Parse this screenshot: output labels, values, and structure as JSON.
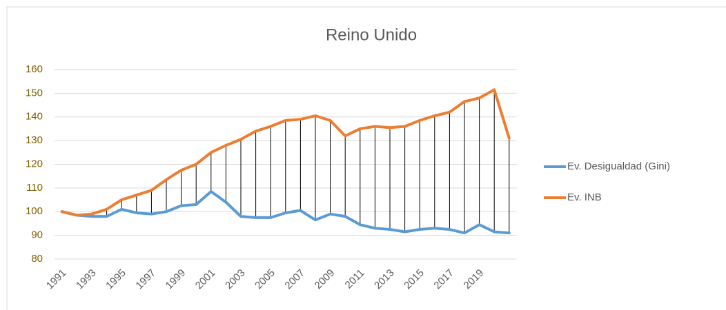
{
  "chart_data": {
    "type": "line",
    "title": "Reino Unido",
    "categories": [
      "1991",
      null,
      "1993",
      null,
      "1995",
      null,
      "1997",
      null,
      "1999",
      null,
      "2001",
      null,
      "2003",
      null,
      "2005",
      null,
      "2007",
      null,
      "2009",
      null,
      "2011",
      null,
      "2013",
      null,
      "2015",
      null,
      "2017",
      null,
      "2019",
      null,
      null
    ],
    "series": [
      {
        "name": "Ev. Desigualdad (Gini)",
        "color": "#5b9bd5",
        "values": [
          100,
          98.5,
          98,
          98,
          101,
          99.5,
          99,
          100,
          102.5,
          103,
          108.5,
          104,
          98,
          97.5,
          97.5,
          99.5,
          100.5,
          96.5,
          99,
          98,
          94.5,
          93,
          92.5,
          91.5,
          92.5,
          93,
          92.5,
          91,
          94.5,
          91.5,
          91
        ]
      },
      {
        "name": "Ev. INB",
        "color": "#ed7d31",
        "values": [
          100,
          98.5,
          99,
          101,
          105,
          107,
          109,
          113.5,
          117.5,
          120,
          125,
          128,
          130.5,
          134,
          136,
          138.5,
          139,
          140.5,
          138.5,
          132,
          135,
          136,
          135.5,
          136,
          138.5,
          140.5,
          142,
          146.5,
          148,
          151.5,
          131
        ]
      }
    ],
    "ylim": [
      80,
      160
    ],
    "yticks": [
      80,
      90,
      100,
      110,
      120,
      130,
      140,
      150,
      160
    ],
    "grid": true,
    "drop_lines": true,
    "legend": "right"
  }
}
